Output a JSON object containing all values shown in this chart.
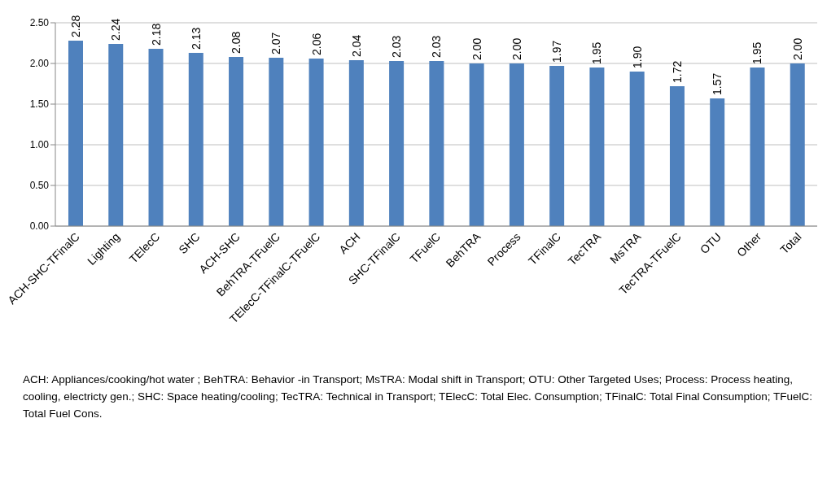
{
  "chart_data": {
    "type": "bar",
    "categories": [
      "ACH-SHC-TFinalC",
      "Lighting",
      "TElecC",
      "SHC",
      "ACH-SHC",
      "BehTRA-TFuelC",
      "TElecC-TFinalC-TFuelC",
      "ACH",
      "SHC-TFinalC",
      "TFuelC",
      "BehTRA",
      "Process",
      "TFinalC",
      "TecTRA",
      "MsTRA",
      "TecTRA-TFuelC",
      "OTU",
      "Other",
      "Total"
    ],
    "values": [
      2.28,
      2.24,
      2.18,
      2.13,
      2.08,
      2.07,
      2.06,
      2.04,
      2.03,
      2.03,
      2.0,
      2.0,
      1.97,
      1.95,
      1.9,
      1.72,
      1.57,
      1.95,
      2.0
    ],
    "value_labels": [
      "2.28",
      "2.24",
      "2.18",
      "2.13",
      "2.08",
      "2.07",
      "2.06",
      "2.04",
      "2.03",
      "2.03",
      "2.00",
      "2.00",
      "1.97",
      "1.95",
      "1.90",
      "1.72",
      "1.57",
      "1.95",
      "2.00"
    ],
    "color": "#4f81bd",
    "ylim": [
      0,
      2.5
    ],
    "yticks": [
      {
        "value": 0,
        "label": "0.00"
      },
      {
        "value": 0.5,
        "label": "0.50"
      },
      {
        "value": 1,
        "label": "1.00"
      },
      {
        "value": 1.5,
        "label": "1.50"
      },
      {
        "value": 2,
        "label": "2.00"
      },
      {
        "value": 2.5,
        "label": "2.50"
      }
    ],
    "grid": "y",
    "legend": false,
    "annotations": [
      "ACH: Appliances/cooking/hot water ; BehTRA: Behavior -in Transport; MsTRA: Modal shift in Transport; OTU: Other Targeted Uses; Process: Process heating, cooling, electricty gen.; SHC: Space heating/cooling; TecTRA: Technical in Transport; TElecC: Total Elec. Consumption; TFinalC: Total Final Consumption; TFuelC: Total Fuel Cons."
    ]
  }
}
